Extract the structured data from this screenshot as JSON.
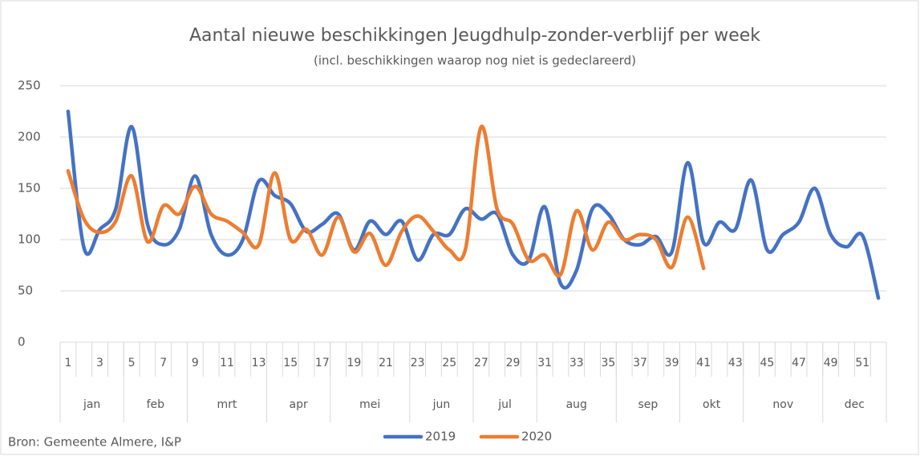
{
  "chart_data": {
    "type": "line",
    "title": "Aantal nieuwe beschikkingen Jeugdhulp-zonder-verblijf per week",
    "subtitle": "(incl. beschikkingen waarop nog niet is gedeclareerd)",
    "source": "Bron: Gemeente Almere, I&P",
    "categories": [
      1,
      null,
      3,
      null,
      5,
      null,
      7,
      null,
      9,
      null,
      11,
      null,
      13,
      null,
      15,
      null,
      17,
      null,
      19,
      null,
      21,
      null,
      23,
      null,
      25,
      null,
      27,
      null,
      29,
      null,
      31,
      null,
      33,
      null,
      35,
      null,
      37,
      null,
      39,
      null,
      41,
      null,
      43,
      null,
      45,
      null,
      47,
      null,
      49,
      null,
      51,
      null
    ],
    "month_categories": [
      "jan",
      null,
      null,
      null,
      "feb",
      null,
      null,
      null,
      "mrt",
      null,
      null,
      null,
      null,
      "apr",
      null,
      null,
      null,
      "mei",
      null,
      null,
      null,
      null,
      "jun",
      null,
      null,
      null,
      "jul",
      null,
      null,
      null,
      "aug",
      null,
      null,
      null,
      null,
      "sep",
      null,
      null,
      null,
      "okt",
      null,
      null,
      null,
      "nov",
      null,
      null,
      null,
      null,
      "dec",
      null,
      null,
      null
    ],
    "series": [
      {
        "name": "2019",
        "color": "#4472c4",
        "values": [
          225,
          92,
          110,
          130,
          210,
          115,
          95,
          110,
          162,
          105,
          85,
          100,
          157,
          143,
          135,
          108,
          115,
          125,
          90,
          118,
          105,
          118,
          80,
          105,
          105,
          130,
          120,
          125,
          85,
          80,
          132,
          57,
          70,
          130,
          125,
          100,
          95,
          103,
          88,
          175,
          97,
          117,
          110,
          158,
          90,
          105,
          117,
          150,
          105,
          93,
          104,
          43
        ]
      },
      {
        "name": "2020",
        "color": "#ed7d31",
        "values": [
          167,
          120,
          107,
          118,
          162,
          98,
          133,
          125,
          152,
          125,
          118,
          107,
          95,
          165,
          100,
          110,
          85,
          122,
          88,
          106,
          75,
          108,
          123,
          108,
          90,
          90,
          210,
          130,
          115,
          80,
          85,
          66,
          128,
          90,
          117,
          100,
          105,
          100,
          73,
          122,
          72,
          null,
          null,
          null,
          null,
          null,
          null,
          null,
          null,
          null,
          null,
          null
        ]
      }
    ],
    "ylim": [
      0,
      250
    ],
    "yticks": [
      0,
      50,
      100,
      150,
      200,
      250
    ],
    "grid": true,
    "smooth": true,
    "legend": "bottom"
  }
}
